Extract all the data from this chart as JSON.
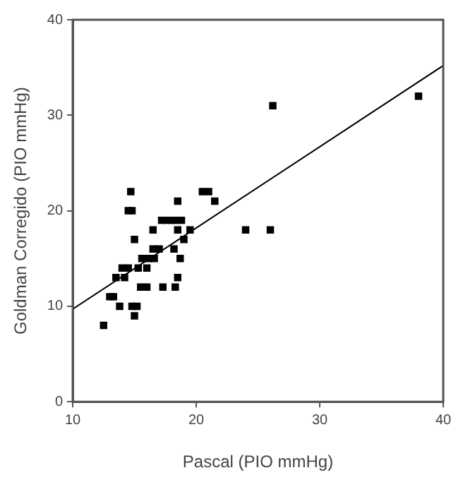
{
  "chart_data": {
    "type": "scatter",
    "xlabel": "Pascal (PIO mmHg)",
    "ylabel": "Goldman Corregido (PIO mmHg)",
    "xlim": [
      10,
      40
    ],
    "ylim": [
      0,
      40
    ],
    "xticks": [
      10,
      20,
      30,
      40
    ],
    "yticks": [
      0,
      10,
      20,
      30,
      40
    ],
    "grid": false,
    "legend": false,
    "marker": "square",
    "series": [
      {
        "color": "#000000",
        "x": [
          12.5,
          13,
          13.3,
          13.5,
          13.8,
          14,
          14.2,
          14.5,
          14.5,
          14.7,
          14.8,
          15,
          14.8,
          15,
          15.2,
          15.3,
          15.5,
          15.6,
          16.1,
          16,
          16,
          16.6,
          16.5,
          16.5,
          17.2,
          17,
          17.3,
          17.6,
          18.0,
          18.4,
          18.2,
          18.3,
          18.5,
          18.5,
          18.5,
          18.7,
          18.8,
          19,
          19.5,
          20.5,
          21,
          21.5,
          24,
          26,
          26.2,
          38
        ],
        "values": [
          8,
          11,
          11,
          13,
          10,
          14,
          13,
          14,
          20,
          22,
          20,
          17,
          10,
          9,
          10,
          14,
          12,
          15,
          15,
          12,
          14,
          15,
          18,
          16,
          19,
          16,
          12,
          19,
          19,
          19,
          16,
          12,
          18,
          13,
          21,
          15,
          19,
          17,
          18,
          22,
          22,
          21,
          18,
          18,
          31,
          32
        ]
      },
      {
        "type": "line",
        "color": "#000000",
        "marker": "none",
        "x": [
          10,
          40
        ],
        "values": [
          9.7,
          35.2
        ]
      }
    ]
  }
}
